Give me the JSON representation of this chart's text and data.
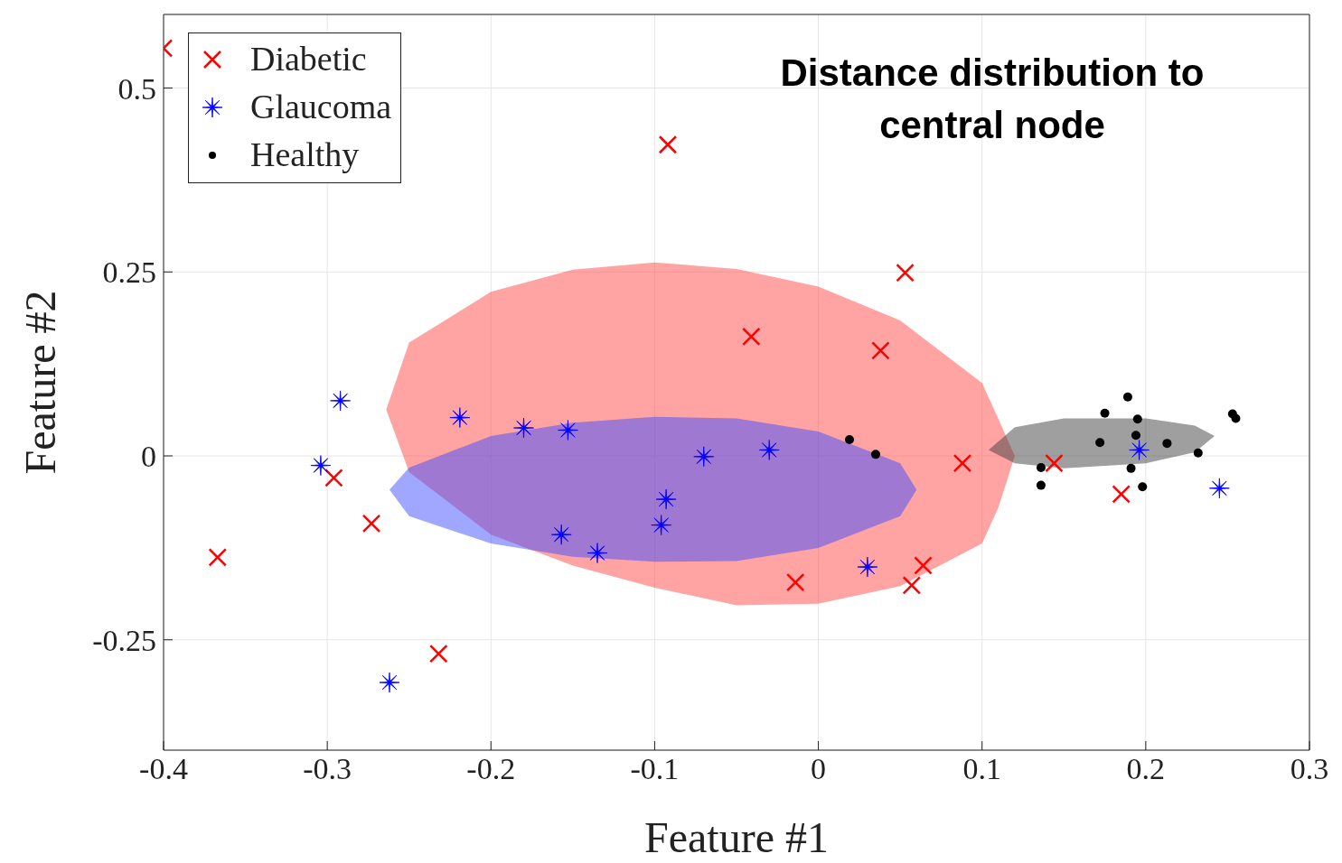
{
  "chart_data": {
    "type": "scatter",
    "title": "Distance distribution to\ncentral node",
    "xlabel": "Feature #1",
    "ylabel": "Feature #2",
    "xlim": [
      -0.4,
      0.3
    ],
    "xticks": [
      -0.4,
      -0.3,
      -0.2,
      -0.1,
      0,
      0.1,
      0.2,
      0.3
    ],
    "ylim": [
      -0.4,
      0.6
    ],
    "yticks": [
      -0.25,
      0,
      0.25,
      0.5
    ],
    "grid": true,
    "legend": "top left",
    "series": [
      {
        "type": "area",
        "color": "#ff4848",
        "x": [
          -0.264,
          -0.25,
          -0.2,
          -0.15,
          -0.1,
          -0.05,
          0,
          0.05,
          0.1,
          0.11,
          0.12,
          0.11,
          0.1,
          0.05,
          0,
          -0.05,
          -0.1,
          -0.15,
          -0.2,
          -0.25
        ],
        "values": [
          0.063,
          0.154,
          0.223,
          0.253,
          0.263,
          0.254,
          0.23,
          0.184,
          0.099,
          0.05,
          0.0,
          -0.07,
          -0.119,
          -0.177,
          -0.201,
          -0.203,
          -0.179,
          -0.149,
          -0.107,
          -0.022
        ]
      },
      {
        "type": "area",
        "color": "#4050ff",
        "x": [
          -0.262,
          -0.25,
          -0.2,
          -0.15,
          -0.1,
          -0.05,
          0,
          0.05,
          0.06,
          0.05,
          0,
          -0.05,
          -0.1,
          -0.15,
          -0.2,
          -0.25
        ],
        "values": [
          -0.046,
          -0.016,
          0.027,
          0.045,
          0.053,
          0.051,
          0.033,
          -0.01,
          -0.046,
          -0.082,
          -0.125,
          -0.143,
          -0.144,
          -0.137,
          -0.119,
          -0.082
        ]
      },
      {
        "type": "area",
        "color": "#404040",
        "x": [
          0.104,
          0.12,
          0.15,
          0.2,
          0.23,
          0.242,
          0.23,
          0.2,
          0.15,
          0.12
        ],
        "values": [
          0.008,
          0.039,
          0.051,
          0.051,
          0.041,
          0.027,
          0.005,
          -0.01,
          -0.017,
          -0.01
        ]
      },
      {
        "name": "Diabetic",
        "color": "#ff0000",
        "marker": "cross",
        "x": [
          -0.4,
          -0.092,
          0.053,
          -0.041,
          0.038,
          -0.296,
          -0.367,
          -0.273,
          -0.232,
          -0.014,
          0.057,
          0.064,
          0.088,
          0.144,
          0.185
        ],
        "values": [
          0.554,
          0.423,
          0.249,
          0.162,
          0.143,
          -0.03,
          -0.138,
          -0.092,
          -0.269,
          -0.172,
          -0.176,
          -0.149,
          -0.01,
          -0.01,
          -0.052
        ]
      },
      {
        "name": "Glaucoma",
        "color": "#0000ff",
        "marker": "star",
        "x": [
          -0.292,
          -0.304,
          -0.262,
          -0.219,
          -0.18,
          -0.153,
          -0.07,
          -0.03,
          -0.093,
          -0.096,
          -0.157,
          -0.135,
          0.03,
          0.196,
          0.245
        ],
        "values": [
          0.075,
          -0.013,
          -0.308,
          0.052,
          0.038,
          0.035,
          -0.001,
          0.008,
          -0.059,
          -0.094,
          -0.107,
          -0.132,
          -0.151,
          0.008,
          -0.044
        ]
      },
      {
        "name": "Healthy",
        "color": "#000000",
        "marker": "circle",
        "x": [
          0.019,
          0.035,
          0.189,
          0.175,
          0.195,
          0.194,
          0.172,
          0.213,
          0.232,
          0.253,
          0.255,
          0.136,
          0.136,
          0.191,
          0.198
        ],
        "values": [
          0.022,
          0.002,
          0.08,
          0.058,
          0.05,
          0.028,
          0.018,
          0.017,
          0.004,
          0.057,
          0.051,
          -0.016,
          -0.04,
          -0.017,
          -0.042
        ]
      }
    ]
  }
}
